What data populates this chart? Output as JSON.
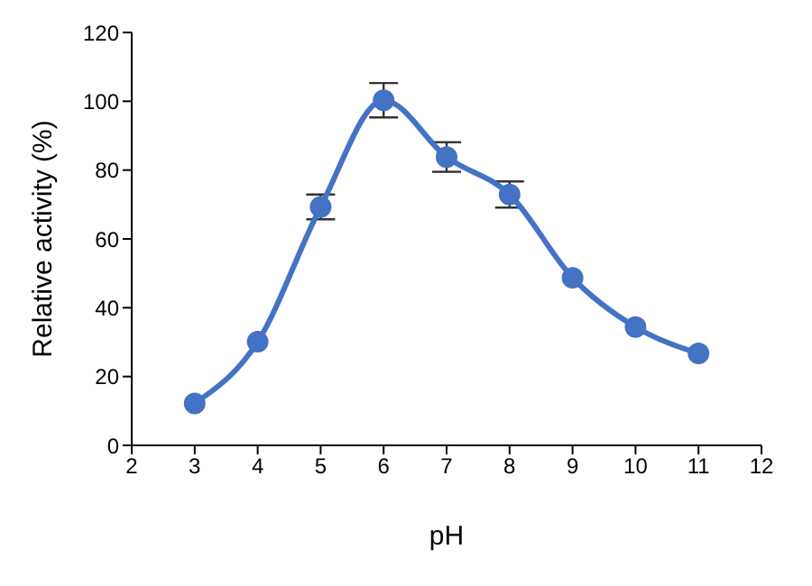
{
  "chart_data": {
    "type": "line",
    "xlabel": "pH",
    "ylabel": "Relative activity (%)",
    "x": [
      3,
      4,
      5,
      6,
      7,
      8,
      9,
      10,
      11
    ],
    "series": [
      {
        "color": "#4472c4",
        "values": [
          12.2,
          30.1,
          69.3,
          100.3,
          83.8,
          72.9,
          48.7,
          34.4,
          26.7
        ],
        "errors": [
          null,
          null,
          3.6,
          5,
          4.3,
          3.8,
          null,
          null,
          null
        ]
      }
    ],
    "xlim": [
      2,
      12
    ],
    "xticks": [
      2,
      3,
      4,
      5,
      6,
      7,
      8,
      9,
      10,
      11,
      12
    ],
    "ylim": [
      0,
      120
    ],
    "yticks": [
      0,
      20,
      40,
      60,
      80,
      100,
      120
    ],
    "marker": "circle",
    "line_style": "solid",
    "grid": false,
    "legend": false
  }
}
